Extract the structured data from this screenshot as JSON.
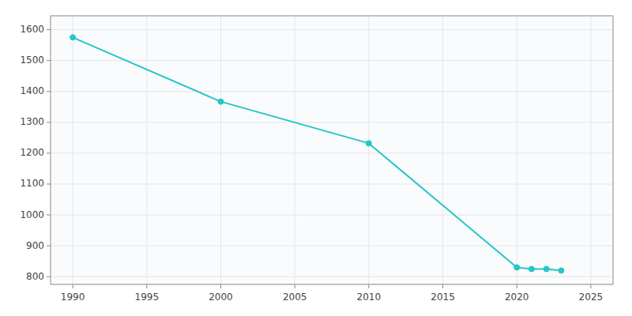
{
  "chart_data": {
    "type": "line",
    "x": [
      1990,
      2000,
      2010,
      2020,
      2021,
      2022,
      2023
    ],
    "values": [
      1575,
      1367,
      1232,
      830,
      825,
      825,
      820
    ],
    "color": "#26C6C6",
    "marker": "circle",
    "xlim": [
      1988.5,
      2026.5
    ],
    "ylim": [
      775,
      1645
    ],
    "xticks": [
      1990,
      1995,
      2000,
      2005,
      2010,
      2015,
      2020,
      2025
    ],
    "yticks": [
      800,
      900,
      1000,
      1100,
      1200,
      1300,
      1400,
      1500,
      1600
    ],
    "grid": true
  }
}
